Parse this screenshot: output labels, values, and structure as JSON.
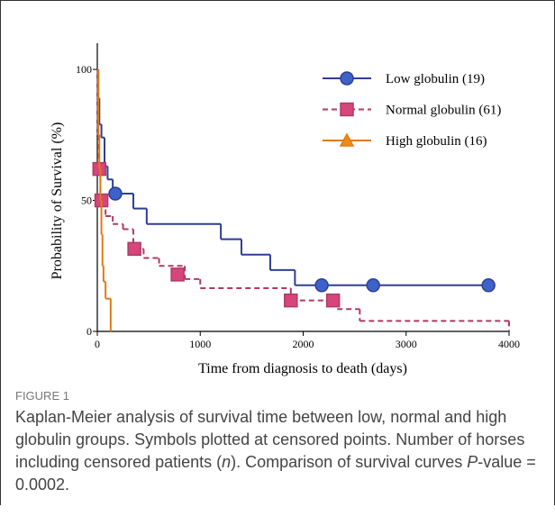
{
  "chart_data": {
    "type": "step",
    "xlabel": "Time from diagnosis to death (days)",
    "ylabel": "Probability of Survival (%)",
    "xlim": [
      0,
      4000
    ],
    "xticks": [
      0,
      1000,
      2000,
      3000,
      4000
    ],
    "ylim": [
      0,
      110
    ],
    "yticks": [
      0,
      50,
      100
    ],
    "legend": "upper right",
    "series": [
      {
        "name": "Low globulin (19)",
        "color": "#2e3e94",
        "dash": "solid",
        "marker": "circle",
        "x": [
          0,
          10,
          20,
          40,
          70,
          100,
          150,
          350,
          480,
          1200,
          1400,
          1680,
          1920,
          3800
        ],
        "values": [
          100,
          89,
          79,
          74,
          63,
          58,
          52.6,
          46.9,
          41,
          35.2,
          29.3,
          23.4,
          17.6,
          17.6
        ],
        "censored_x": [
          175,
          2180,
          2680,
          3800
        ],
        "censored_values": [
          52.6,
          17.6,
          17.6,
          17.6
        ]
      },
      {
        "name": "Normal globulin (61)",
        "color": "#b03a66",
        "dash": "dashed",
        "marker": "square",
        "x": [
          0,
          5,
          10,
          30,
          80,
          150,
          250,
          350,
          450,
          600,
          850,
          1000,
          1880,
          2330,
          2550,
          4000
        ],
        "values": [
          100,
          75,
          62,
          50,
          44,
          41,
          39,
          31.5,
          28,
          25,
          20,
          16.5,
          11.8,
          8.5,
          4,
          0
        ],
        "censored_x": [
          20,
          40,
          360,
          780,
          1880,
          2290
        ],
        "censored_values": [
          62,
          50,
          31.5,
          21.7,
          11.8,
          11.8
        ]
      },
      {
        "name": "High globulin (16)",
        "color": "#e07b12",
        "dash": "solid",
        "marker": "triangle",
        "x": [
          0,
          10,
          20,
          30,
          40,
          50,
          60,
          80,
          130
        ],
        "values": [
          100,
          75,
          62,
          50,
          37,
          25,
          19,
          12.5,
          0
        ],
        "censored_x": [],
        "censored_values": []
      }
    ]
  },
  "figure": {
    "label": "FIGURE 1",
    "caption_parts": [
      "Kaplan-Meier analysis of survival time between low, normal and high globulin groups. Symbols plotted at censored points. Number of horses including censored patients (",
      "n",
      "). Comparison of survival curves ",
      "P",
      "-value = 0.0002."
    ]
  }
}
